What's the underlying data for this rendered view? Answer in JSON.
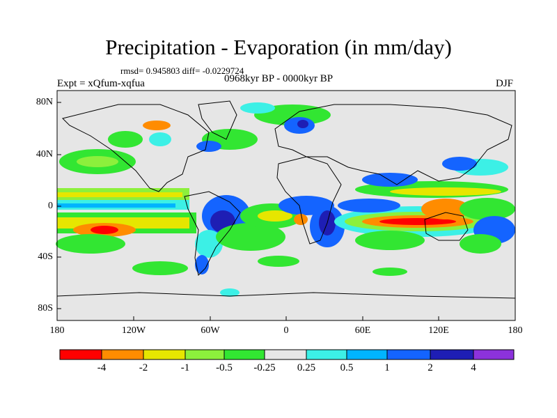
{
  "title": "Precipitation - Evaporation (in mm/day)",
  "stats": "rmsd= 0.945803 diff= -0.0229724",
  "period": "0968kyr BP - 0000kyr BP",
  "experiment": "Expt = xQfum-xqfua",
  "season": "DJF",
  "lat_labels": [
    "80N",
    "40N",
    "0",
    "40S",
    "80S"
  ],
  "lon_labels": [
    "180",
    "120W",
    "60W",
    "0",
    "60E",
    "120E",
    "180"
  ],
  "colorbar": {
    "labels": [
      "-4",
      "-2",
      "-1",
      "-0.5",
      "-0.25",
      "0.25",
      "0.5",
      "1",
      "2",
      "4"
    ],
    "colors": [
      "#ff0000",
      "#ff8c00",
      "#e6e600",
      "#8cf03c",
      "#32e632",
      "#e6e6e6",
      "#3cf0e6",
      "#00b4ff",
      "#1464ff",
      "#1e1eb4",
      "#8c32dc"
    ]
  },
  "map_colors": {
    "background": "#e6e6e6",
    "land_outline": "#000000"
  }
}
